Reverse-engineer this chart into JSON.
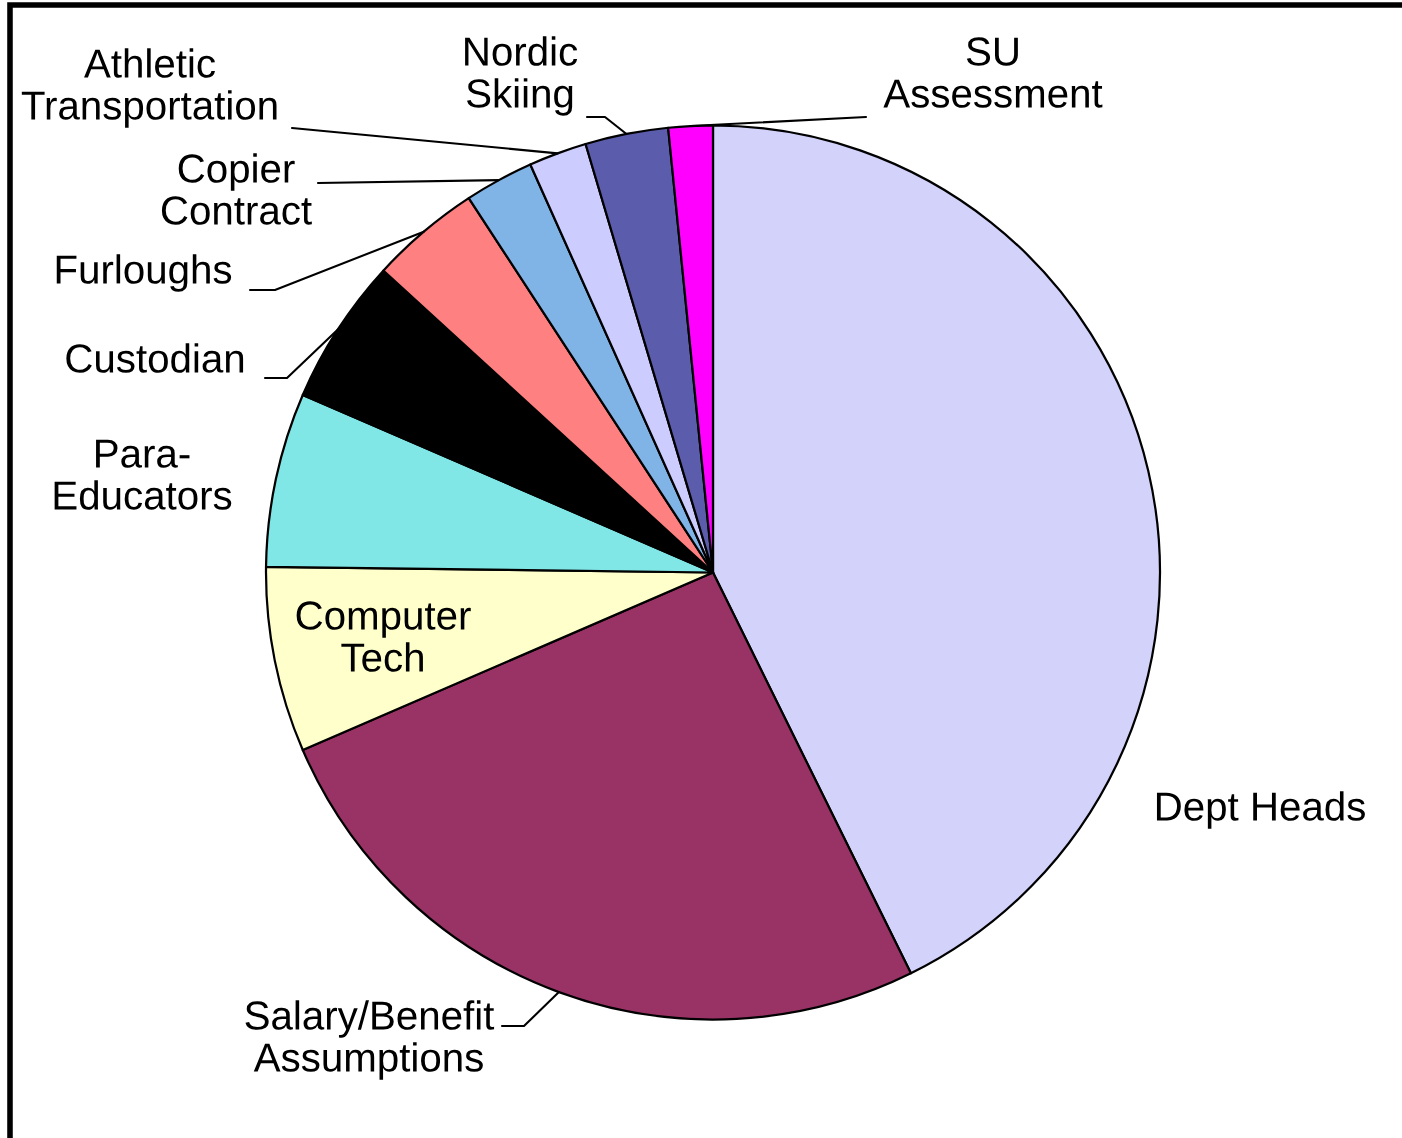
{
  "chart_data": {
    "type": "pie",
    "categories": [
      "Dept Heads",
      "Salary/Benefit\nAssumptions",
      "Computer\nTech",
      "Para-\nEducators",
      "Custodian",
      "Furloughs",
      "Copier\nContract",
      "Athletic\nTransportation",
      "Nordic\nSkiing",
      "SU\nAssessment"
    ],
    "values": [
      42.7,
      25.8,
      6.7,
      6.3,
      5.3,
      4.0,
      2.5,
      2.1,
      3.0,
      1.6
    ],
    "colors": [
      "#d2d2fa",
      "#993366",
      "#ffffcc",
      "#80e6e6",
      "#000000",
      "#ff8080",
      "#80b3e6",
      "#ccccff",
      "#5c5cad",
      "#ff00ff"
    ]
  }
}
